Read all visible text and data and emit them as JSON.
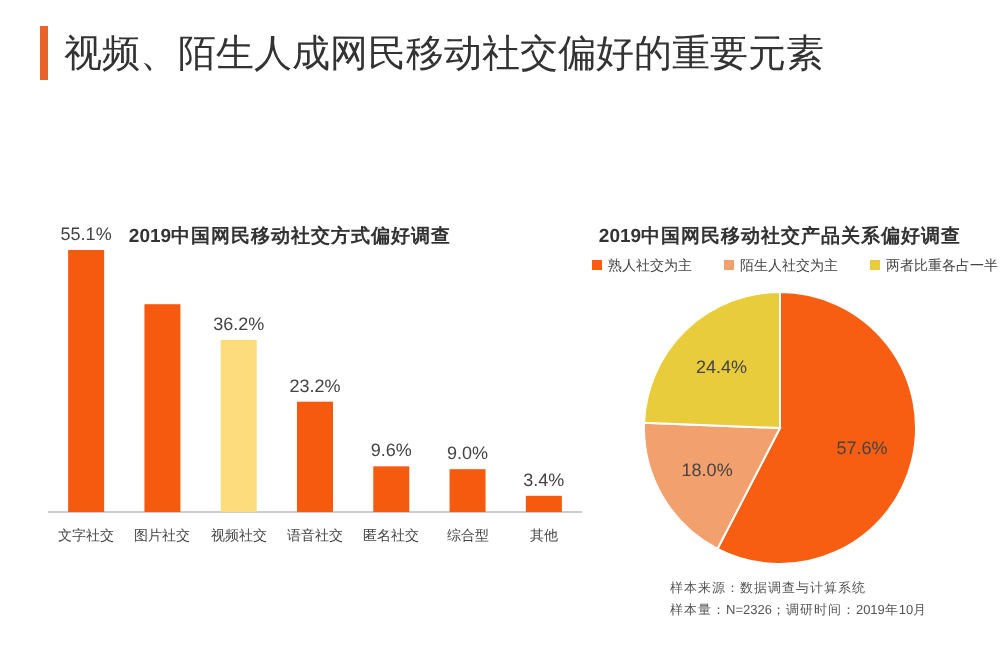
{
  "chart_data": [
    {
      "type": "other",
      "title": "视频、陌生人成网民移动社交偏好的重要元素"
    },
    {
      "type": "bar",
      "title": "2019中国网民移动社交方式偏好调查",
      "categories": [
        "文字社交",
        "图片社交",
        "视频社交",
        "语音社交",
        "匿名社交",
        "综合型",
        "其他"
      ],
      "values": [
        55.1,
        43.7,
        36.2,
        23.2,
        9.6,
        9.0,
        3.4
      ],
      "colors": [
        "#f55a0f",
        "#f55a0f",
        "#fddc7e",
        "#f55a0f",
        "#f55a0f",
        "#f55a0f",
        "#f55a0f"
      ],
      "value_labels": [
        "55.1%",
        null,
        "36.2%",
        "23.2%",
        "9.6%",
        "9.0%",
        "3.4%"
      ]
    },
    {
      "type": "pie",
      "title": "2019中国网民移动社交产品关系偏好调查",
      "categories": [
        "熟人社交为主",
        "陌生人社交为主",
        "两者比重各占一半"
      ],
      "values": [
        57.6,
        18.0,
        24.4
      ],
      "colors": [
        "#f85e12",
        "#f2a06e",
        "#e8cc3c"
      ],
      "value_labels": [
        "57.6%",
        "18.0%",
        "24.4%"
      ],
      "legend": "top",
      "annotations": [
        "样本来源：数据调查与计算系统",
        "样本量：N=2326；调研时间：2019年10月"
      ]
    }
  ]
}
